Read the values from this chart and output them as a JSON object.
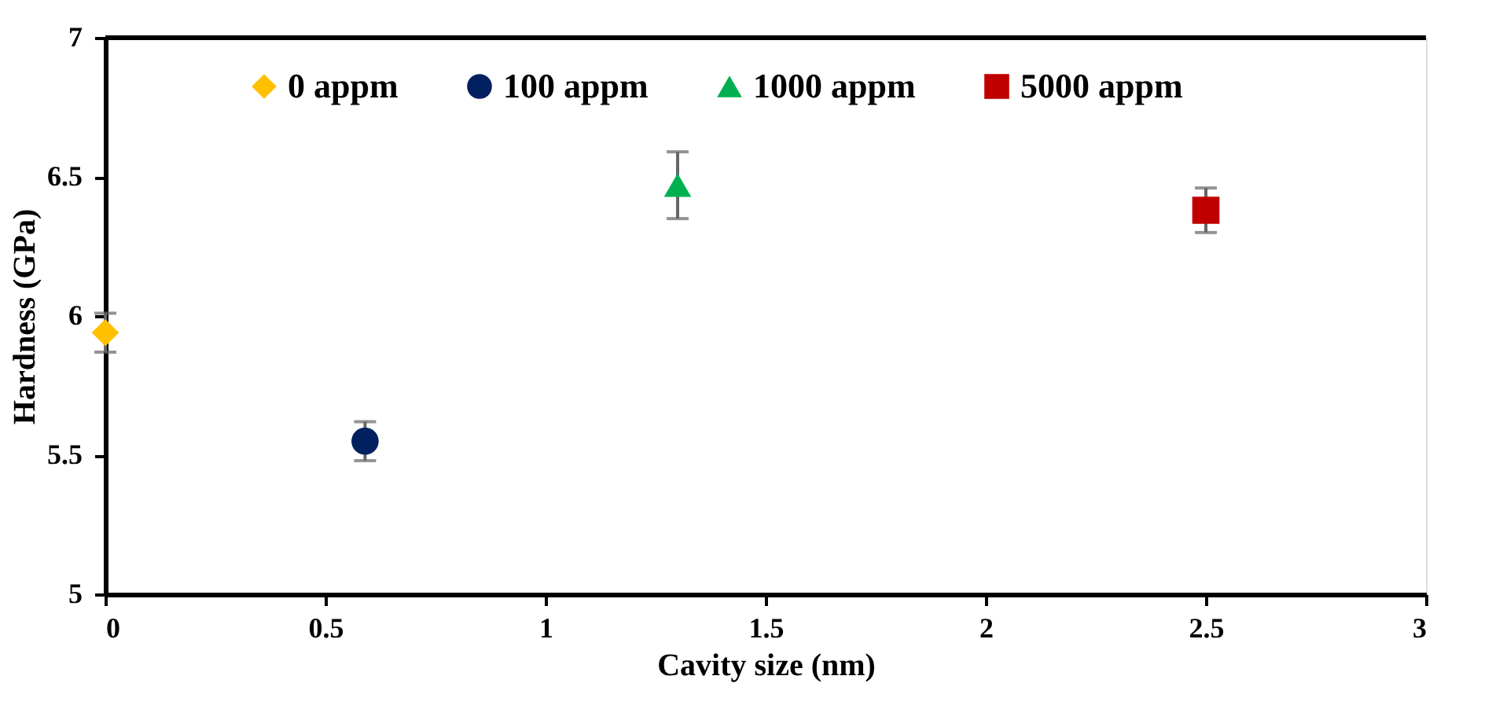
{
  "chart_data": {
    "type": "scatter",
    "xlabel": "Cavity size (nm)",
    "ylabel": "Hardness (GPa)",
    "xlim": [
      0,
      3
    ],
    "xticks": [
      0,
      0.5,
      1,
      1.5,
      2,
      2.5,
      3
    ],
    "ylim": [
      5,
      7
    ],
    "yticks": [
      5,
      5.5,
      6,
      6.5,
      7
    ],
    "grid": false,
    "legend": "top",
    "series": [
      {
        "name": "0 appm",
        "color": "#ffc000",
        "marker": "diamond",
        "x": [
          0
        ],
        "values": [
          5.94
        ],
        "errors": [
          0.07
        ]
      },
      {
        "name": "100 appm",
        "color": "#002060",
        "marker": "circle",
        "x": [
          0.59
        ],
        "values": [
          5.55
        ],
        "errors": [
          0.07
        ]
      },
      {
        "name": "1000 appm",
        "color": "#00b050",
        "marker": "triangle",
        "x": [
          1.3
        ],
        "values": [
          6.47
        ],
        "errors": [
          0.12
        ]
      },
      {
        "name": "5000 appm",
        "color": "#c00000",
        "marker": "square",
        "x": [
          2.5
        ],
        "values": [
          6.38
        ],
        "errors": [
          0.08
        ]
      }
    ]
  }
}
